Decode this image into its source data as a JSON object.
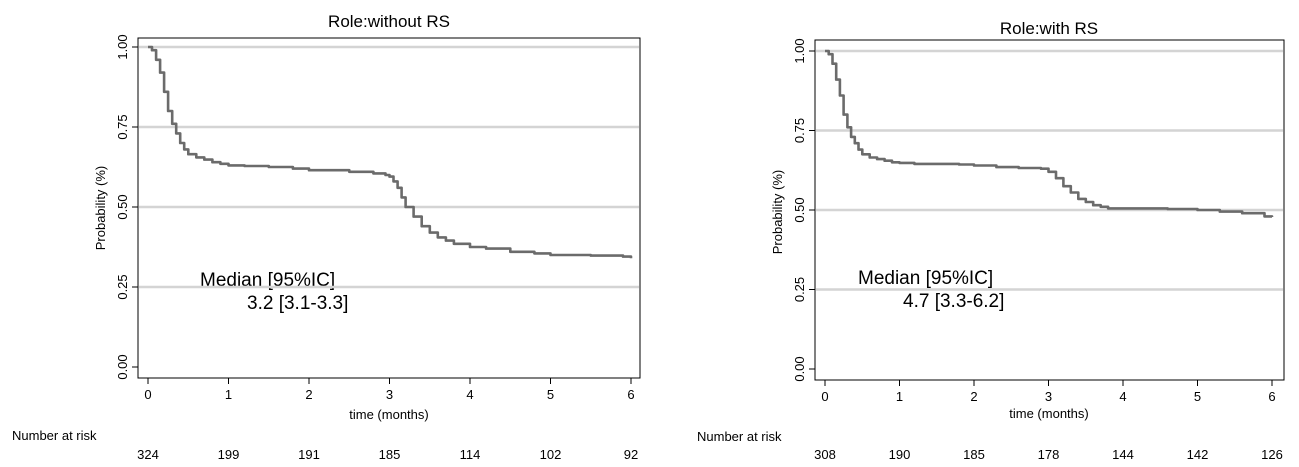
{
  "chart_data": [
    {
      "type": "line",
      "title": "Role:without RS",
      "xlabel": "time (months)",
      "ylabel": "Probability (%)",
      "xlim": [
        0,
        6
      ],
      "ylim": [
        0,
        1
      ],
      "x_ticks": [
        0,
        1,
        2,
        3,
        4,
        5,
        6
      ],
      "y_ticks": [
        "0.00",
        "0.25",
        "0.50",
        "0.75",
        "1.00"
      ],
      "grid": true,
      "annotation": [
        "Median [95%IC]",
        "3.2 [3.1-3.3]"
      ],
      "risk_table": {
        "label": "Number at risk",
        "values": [
          "324",
          "199",
          "191",
          "185",
          "114",
          "102",
          "92"
        ]
      },
      "series": [
        {
          "color": "#6b6b6b",
          "x": [
            0,
            0.05,
            0.1,
            0.15,
            0.2,
            0.25,
            0.3,
            0.35,
            0.4,
            0.45,
            0.5,
            0.6,
            0.7,
            0.8,
            0.9,
            1.0,
            1.2,
            1.5,
            1.8,
            2.0,
            2.5,
            2.8,
            2.95,
            3.0,
            3.05,
            3.1,
            3.15,
            3.2,
            3.3,
            3.4,
            3.5,
            3.6,
            3.7,
            3.8,
            4.0,
            4.2,
            4.5,
            4.8,
            5.0,
            5.5,
            5.9,
            6.0
          ],
          "y": [
            1.0,
            0.99,
            0.96,
            0.92,
            0.86,
            0.8,
            0.76,
            0.73,
            0.7,
            0.68,
            0.665,
            0.655,
            0.648,
            0.64,
            0.635,
            0.63,
            0.628,
            0.625,
            0.62,
            0.615,
            0.61,
            0.605,
            0.6,
            0.595,
            0.58,
            0.56,
            0.53,
            0.5,
            0.47,
            0.44,
            0.42,
            0.405,
            0.395,
            0.385,
            0.375,
            0.37,
            0.36,
            0.355,
            0.35,
            0.348,
            0.345,
            0.34
          ]
        }
      ]
    },
    {
      "type": "line",
      "title": "Role:with RS",
      "xlabel": "time (months)",
      "ylabel": "Probability (%)",
      "xlim": [
        0,
        6
      ],
      "ylim": [
        0,
        1
      ],
      "x_ticks": [
        0,
        1,
        2,
        3,
        4,
        5,
        6
      ],
      "y_ticks": [
        "0.00",
        "0.25",
        "0.50",
        "0.75",
        "1.00"
      ],
      "grid": true,
      "annotation": [
        "Median [95%IC]",
        "4.7 [3.3-6.2]"
      ],
      "risk_table": {
        "label": "Number at risk",
        "values": [
          "308",
          "190",
          "185",
          "178",
          "144",
          "142",
          "126"
        ]
      },
      "series": [
        {
          "color": "#6b6b6b",
          "x": [
            0,
            0.05,
            0.1,
            0.15,
            0.2,
            0.25,
            0.3,
            0.35,
            0.4,
            0.45,
            0.5,
            0.6,
            0.7,
            0.8,
            0.9,
            1.0,
            1.2,
            1.5,
            1.8,
            2.0,
            2.3,
            2.6,
            2.9,
            3.0,
            3.1,
            3.2,
            3.3,
            3.4,
            3.5,
            3.6,
            3.7,
            3.8,
            4.0,
            4.3,
            4.6,
            5.0,
            5.3,
            5.6,
            5.8,
            5.9,
            6.0
          ],
          "y": [
            1.0,
            0.99,
            0.96,
            0.91,
            0.86,
            0.8,
            0.76,
            0.73,
            0.71,
            0.69,
            0.675,
            0.665,
            0.66,
            0.655,
            0.65,
            0.648,
            0.645,
            0.645,
            0.643,
            0.64,
            0.635,
            0.632,
            0.63,
            0.62,
            0.6,
            0.575,
            0.555,
            0.535,
            0.525,
            0.515,
            0.51,
            0.505,
            0.505,
            0.505,
            0.503,
            0.5,
            0.495,
            0.49,
            0.49,
            0.48,
            0.478
          ]
        }
      ]
    }
  ]
}
